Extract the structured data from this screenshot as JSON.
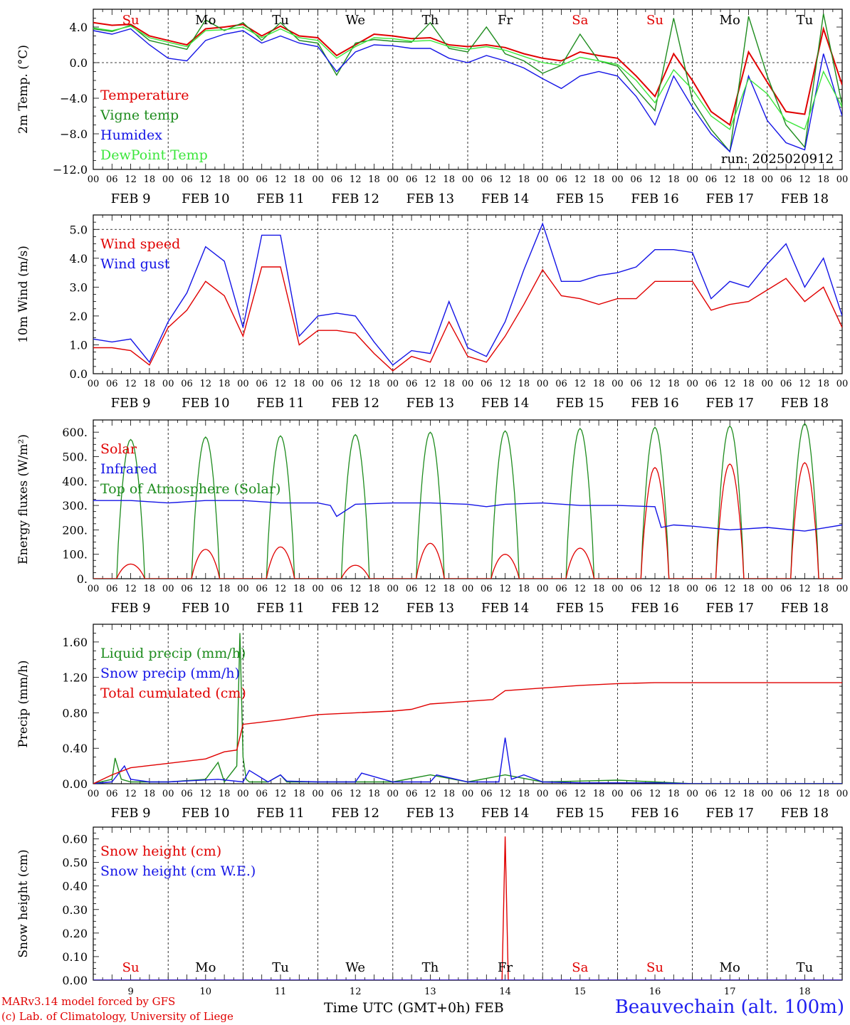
{
  "colors": {
    "red": "#e00000",
    "green": "#1e8c1e",
    "blue": "#1414e6",
    "lightgreen": "#3ce63c",
    "station": "#2020f0"
  },
  "run_label": "run: 2025020912",
  "xlabel": "Time UTC (GMT+0h) FEB",
  "station": "Beauvechain (alt. 100m)",
  "footer_model": "MARv3.14 model forced by GFS",
  "footer_lab": "(c) Lab. of Climatology, University of Liege",
  "day_names": [
    "Su",
    "Mo",
    "Tu",
    "We",
    "Th",
    "Fr",
    "Sa",
    "Su",
    "Mo",
    "Tu"
  ],
  "day_name_colors": [
    "red",
    "black",
    "black",
    "black",
    "black",
    "black",
    "red",
    "red",
    "black",
    "black"
  ],
  "day_numbers": [
    "9",
    "10",
    "11",
    "12",
    "13",
    "14",
    "15",
    "16",
    "17",
    "18"
  ],
  "date_labels": [
    "FEB  9",
    "FEB 10",
    "FEB 11",
    "FEB 12",
    "FEB 13",
    "FEB 14",
    "FEB 15",
    "FEB 16",
    "FEB 17",
    "FEB 18"
  ],
  "hour_labels": [
    "00",
    "06",
    "12",
    "18"
  ],
  "chart_data": [
    {
      "type": "line",
      "ylabel": "2m Temp. (°C)",
      "ylim": [
        -12,
        6
      ],
      "ytick_values": [
        -12,
        -8,
        -4,
        0,
        4
      ],
      "ytick_labels": [
        "−12.0",
        "−8.0",
        "−4.0",
        "0.0",
        "4.0"
      ],
      "dashed_refs": [
        0
      ],
      "x_unit": "hours since Feb 9 00 UTC",
      "series": [
        {
          "name": "Temperature",
          "color": "red",
          "x": [
            0,
            6,
            12,
            18,
            24,
            30,
            36,
            42,
            48,
            54,
            60,
            66,
            72,
            78,
            84,
            90,
            96,
            102,
            108,
            114,
            120,
            126,
            132,
            138,
            144,
            150,
            156,
            162,
            168,
            174,
            180,
            186,
            192,
            198,
            204,
            210,
            216,
            222,
            228,
            234,
            240
          ],
          "values": [
            4.5,
            4.2,
            4.3,
            3.0,
            2.5,
            2.0,
            3.8,
            4.0,
            4.3,
            3.0,
            4.1,
            3.0,
            2.8,
            0.8,
            2.0,
            3.2,
            3.0,
            2.7,
            2.8,
            2.0,
            1.8,
            2.0,
            1.7,
            1.0,
            0.5,
            0.2,
            1.2,
            0.8,
            0.5,
            -1.5,
            -3.8,
            1.0,
            -2.0,
            -5.5,
            -7.0,
            1.2,
            -2.2,
            -5.5,
            -5.8,
            3.8,
            -2.5
          ]
        },
        {
          "name": "Vigne temp",
          "color": "green",
          "x": [
            0,
            6,
            12,
            18,
            24,
            30,
            36,
            42,
            48,
            54,
            60,
            66,
            72,
            78,
            84,
            90,
            96,
            102,
            108,
            114,
            120,
            126,
            132,
            138,
            144,
            150,
            156,
            162,
            168,
            174,
            180,
            186,
            192,
            198,
            204,
            210,
            216,
            222,
            228,
            234,
            240
          ],
          "values": [
            3.8,
            3.5,
            4.2,
            2.5,
            2.0,
            1.5,
            4.8,
            3.6,
            4.5,
            2.5,
            4.5,
            2.5,
            2.2,
            -1.4,
            2.2,
            2.6,
            2.4,
            2.3,
            4.5,
            1.6,
            1.2,
            4.0,
            1.0,
            0.2,
            -1.2,
            -0.3,
            3.2,
            0.2,
            -0.4,
            -3.0,
            -5.4,
            5.0,
            -4.2,
            -7.5,
            -10.0,
            5.2,
            -1.5,
            -7.0,
            -9.5,
            5.5,
            -4.8
          ]
        },
        {
          "name": "Humidex",
          "color": "blue",
          "x": [
            0,
            6,
            12,
            18,
            24,
            30,
            36,
            42,
            48,
            54,
            60,
            66,
            72,
            78,
            84,
            90,
            96,
            102,
            108,
            114,
            120,
            126,
            132,
            138,
            144,
            150,
            156,
            162,
            168,
            174,
            180,
            186,
            192,
            198,
            204,
            210,
            216,
            222,
            228,
            234,
            240
          ],
          "values": [
            3.6,
            3.2,
            3.8,
            2.0,
            0.5,
            0.2,
            2.5,
            3.2,
            3.6,
            2.2,
            3.0,
            2.2,
            1.8,
            -1.0,
            1.2,
            2.0,
            1.9,
            1.6,
            1.6,
            0.5,
            0.0,
            0.8,
            0.2,
            -0.6,
            -1.8,
            -2.9,
            -1.5,
            -1.0,
            -1.5,
            -3.8,
            -7.0,
            -1.5,
            -5.0,
            -8.0,
            -10.0,
            -1.5,
            -6.5,
            -9.0,
            -9.8,
            1.0,
            -6.0
          ]
        },
        {
          "name": "DewPoint Temp",
          "color": "lightgreen",
          "x": [
            0,
            6,
            12,
            18,
            24,
            30,
            36,
            42,
            48,
            54,
            60,
            66,
            72,
            78,
            84,
            90,
            96,
            102,
            108,
            114,
            120,
            126,
            132,
            138,
            144,
            150,
            156,
            162,
            168,
            174,
            180,
            186,
            192,
            198,
            204,
            210,
            216,
            222,
            228,
            234,
            240
          ],
          "values": [
            3.9,
            3.6,
            4.1,
            2.8,
            2.3,
            1.8,
            3.6,
            3.7,
            4.0,
            2.8,
            3.8,
            2.8,
            2.5,
            0.5,
            1.8,
            2.8,
            2.7,
            2.4,
            2.5,
            1.8,
            1.5,
            1.8,
            1.4,
            0.7,
            0.0,
            -0.3,
            0.6,
            0.2,
            -0.2,
            -2.0,
            -4.5,
            -0.8,
            -3.0,
            -6.0,
            -7.5,
            -1.8,
            -3.5,
            -6.5,
            -7.5,
            -1.0,
            -5.0
          ]
        }
      ],
      "legend": [
        "Temperature",
        "Vigne temp",
        "Humidex",
        "DewPoint Temp"
      ],
      "legend_placement": "bottom-left"
    },
    {
      "type": "line",
      "ylabel": "10m Wind (m/s)",
      "ylim": [
        0,
        5.5
      ],
      "ytick_values": [
        0,
        1,
        2,
        3,
        4,
        5
      ],
      "ytick_labels": [
        "0.0",
        "1.0",
        "2.0",
        "3.0",
        "4.0",
        "5.0"
      ],
      "dashed_refs": [
        5
      ],
      "x_unit": "hours since Feb 9 00 UTC",
      "series": [
        {
          "name": "Wind speed",
          "color": "red",
          "x": [
            0,
            6,
            12,
            18,
            24,
            30,
            36,
            42,
            48,
            54,
            60,
            66,
            72,
            78,
            84,
            90,
            96,
            102,
            108,
            114,
            120,
            126,
            132,
            138,
            144,
            150,
            156,
            162,
            168,
            174,
            180,
            186,
            192,
            198,
            204,
            210,
            216,
            222,
            228,
            234,
            240
          ],
          "values": [
            0.9,
            0.9,
            0.8,
            0.3,
            1.6,
            2.2,
            3.2,
            2.7,
            1.3,
            3.7,
            3.7,
            1.0,
            1.5,
            1.5,
            1.4,
            0.7,
            0.1,
            0.6,
            0.4,
            1.8,
            0.6,
            0.4,
            1.3,
            2.4,
            3.6,
            2.7,
            2.6,
            2.4,
            2.6,
            2.6,
            3.2,
            3.2,
            3.2,
            2.2,
            2.4,
            2.5,
            2.9,
            3.3,
            2.5,
            3.0,
            1.6
          ]
        },
        {
          "name": "Wind gust",
          "color": "blue",
          "x": [
            0,
            6,
            12,
            18,
            24,
            30,
            36,
            42,
            48,
            54,
            60,
            66,
            72,
            78,
            84,
            90,
            96,
            102,
            108,
            114,
            120,
            126,
            132,
            138,
            144,
            150,
            156,
            162,
            168,
            174,
            180,
            186,
            192,
            198,
            204,
            210,
            216,
            222,
            228,
            234,
            240
          ],
          "values": [
            1.2,
            1.1,
            1.2,
            0.4,
            1.8,
            2.8,
            4.4,
            3.9,
            1.6,
            4.8,
            4.8,
            1.3,
            2.0,
            2.1,
            2.0,
            1.1,
            0.3,
            0.8,
            0.7,
            2.5,
            0.9,
            0.6,
            1.8,
            3.6,
            5.2,
            3.2,
            3.2,
            3.4,
            3.5,
            3.7,
            4.3,
            4.3,
            4.2,
            2.6,
            3.2,
            3.0,
            3.8,
            4.5,
            3.0,
            4.0,
            2.0
          ]
        }
      ],
      "legend": [
        "Wind speed",
        "Wind gust"
      ],
      "legend_placement": "top-left"
    },
    {
      "type": "line",
      "ylabel": "Energy fluxes (W/m²)",
      "ylim": [
        0,
        650
      ],
      "ytick_values": [
        0,
        100,
        200,
        300,
        400,
        500,
        600
      ],
      "ytick_labels": [
        "0.",
        "100.",
        "200.",
        "300.",
        "400.",
        "500.",
        "600."
      ],
      "dashed_refs": [],
      "x_unit": "hours since Feb 9 00 UTC",
      "daily_peaks": {
        "Solar": [
          60,
          120,
          130,
          55,
          145,
          100,
          125,
          455,
          470,
          475
        ],
        "Top of Atmosphere (Solar)": [
          570,
          580,
          585,
          590,
          600,
          605,
          615,
          620,
          625,
          635
        ]
      },
      "series": [
        {
          "name": "Infrared",
          "color": "blue",
          "x": [
            0,
            12,
            24,
            36,
            48,
            60,
            72,
            76,
            78,
            84,
            96,
            108,
            120,
            126,
            132,
            144,
            156,
            168,
            180,
            182,
            186,
            192,
            204,
            216,
            228,
            240
          ],
          "values": [
            320,
            320,
            310,
            320,
            320,
            310,
            310,
            300,
            255,
            305,
            310,
            310,
            305,
            295,
            305,
            310,
            300,
            300,
            295,
            210,
            220,
            215,
            200,
            210,
            195,
            220
          ]
        }
      ],
      "legend": [
        "Solar",
        "Infrared",
        "Top of Atmosphere (Solar)"
      ],
      "legend_placement": "top-left"
    },
    {
      "type": "line",
      "ylabel": "Precip (mm/h)",
      "ylim": [
        0,
        1.8
      ],
      "ytick_values": [
        0,
        0.4,
        0.8,
        1.2,
        1.6
      ],
      "ytick_labels": [
        "0.00",
        "0.40",
        "0.80",
        "1.20",
        "1.60"
      ],
      "dashed_refs": [],
      "x_unit": "hours since Feb 9 00 UTC",
      "series": [
        {
          "name": "Liquid precip (mm/h)",
          "color": "green",
          "x": [
            0,
            6,
            7,
            9,
            12,
            18,
            24,
            36,
            40,
            42,
            46,
            47,
            48,
            49,
            50,
            56,
            60,
            62,
            72,
            84,
            96,
            108,
            120,
            132,
            144,
            156,
            168,
            180,
            192,
            240
          ],
          "values": [
            0,
            0.05,
            0.29,
            0.05,
            0.02,
            0.02,
            0.02,
            0.05,
            0.24,
            0.02,
            0.2,
            1.7,
            0.3,
            0.05,
            0.02,
            0.02,
            0.1,
            0.02,
            0.02,
            0.02,
            0.02,
            0.1,
            0.02,
            0.1,
            0.02,
            0.03,
            0.04,
            0.02,
            0,
            0
          ]
        },
        {
          "name": "Snow precip (mm/h)",
          "color": "blue",
          "x": [
            0,
            6,
            10,
            12,
            18,
            24,
            40,
            48,
            50,
            56,
            60,
            62,
            72,
            84,
            86,
            96,
            108,
            110,
            120,
            130,
            132,
            134,
            138,
            144,
            156,
            168,
            180,
            192,
            240
          ],
          "values": [
            0,
            0.02,
            0.2,
            0.05,
            0.02,
            0.02,
            0.05,
            0.02,
            0.15,
            0.02,
            0.1,
            0.03,
            0.02,
            0.02,
            0.12,
            0.02,
            0.02,
            0.1,
            0.02,
            0.02,
            0.52,
            0.05,
            0.1,
            0.02,
            0.01,
            0.01,
            0.01,
            0,
            0
          ]
        },
        {
          "name": "Total cumulated (cm)",
          "color": "red",
          "x": [
            0,
            6,
            12,
            24,
            36,
            42,
            46,
            48,
            60,
            72,
            84,
            96,
            102,
            108,
            120,
            128,
            132,
            144,
            156,
            168,
            180,
            192,
            240
          ],
          "values": [
            0,
            0.1,
            0.18,
            0.23,
            0.28,
            0.36,
            0.38,
            0.67,
            0.72,
            0.78,
            0.8,
            0.82,
            0.84,
            0.9,
            0.93,
            0.95,
            1.05,
            1.08,
            1.11,
            1.13,
            1.14,
            1.14,
            1.14
          ]
        }
      ],
      "legend": [
        "Liquid precip (mm/h)",
        "Snow precip (mm/h)",
        "Total cumulated (cm)"
      ],
      "legend_placement": "top-left"
    },
    {
      "type": "line",
      "ylabel": "Snow height (cm)",
      "ylim": [
        0,
        0.65
      ],
      "ytick_values": [
        0,
        0.1,
        0.2,
        0.3,
        0.4,
        0.5,
        0.6
      ],
      "ytick_labels": [
        "0.00",
        "0.10",
        "0.20",
        "0.30",
        "0.40",
        "0.50",
        "0.60"
      ],
      "dashed_refs": [],
      "x_unit": "hours since Feb 9 00 UTC",
      "series": [
        {
          "name": "Snow height (cm)",
          "color": "red",
          "x": [
            0,
            131,
            132,
            133,
            240
          ],
          "values": [
            0,
            0,
            0.61,
            0,
            0
          ]
        },
        {
          "name": "Snow height (cm W.E.)",
          "color": "blue",
          "x": [
            0,
            240
          ],
          "values": [
            0,
            0
          ]
        }
      ],
      "legend": [
        "Snow height (cm)",
        "Snow height (cm W.E.)"
      ],
      "legend_placement": "top-left"
    }
  ]
}
